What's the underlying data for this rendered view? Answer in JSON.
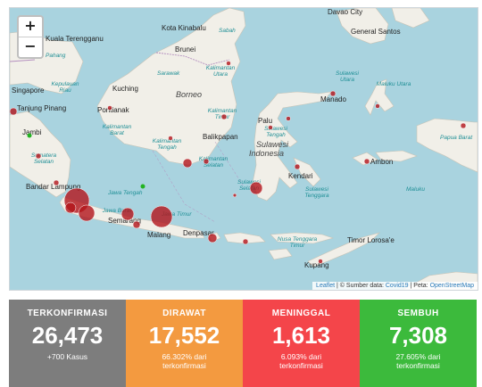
{
  "map": {
    "zoom_in": "+",
    "zoom_out": "−",
    "attribution": {
      "leaflet": "Leaflet",
      "mid": "| © Sumber data:",
      "source": "Covid19",
      "sep": "| Peta:",
      "tiles": "OpenStreetMap"
    },
    "labels": {
      "kota_kinabalu": "Kota Kinabalu",
      "sabah": "Sabah",
      "brunei": "Brunei",
      "kuala_terengganu": "Kuala Terengganu",
      "pahang": "Pahang",
      "sarawak": "Sarawak",
      "kuching": "Kuching",
      "borneo": "Borneo",
      "singapore": "Singapore",
      "kepulauan_riau": "Kepulauan Riau",
      "tanjung_pinang": "Tanjung Pinang",
      "jambi": "Jambi",
      "pontianak": "Pontianak",
      "kalimantan_barat": "Kalimantan Barat",
      "kalimantan_utara": "Kalimantan Utara",
      "kalimantan_timur": "Kalimantan Timur",
      "kalimantan_tengah": "Kalimantan Tengah",
      "kalimantan_selatan": "Kalimantan Selatan",
      "balikpapan": "Balikpapan",
      "general_santos": "General Santos",
      "manado": "Manado",
      "sulawesi_utara": "Sulawesi Utara",
      "maluku_utara": "Maluku Utara",
      "palu": "Palu",
      "sulawesi_tengah": "Sulawesi Tengah",
      "sulawesi": "Sulawesi",
      "indonesia": "Indonesia",
      "kendari": "Kendari",
      "sulawesi_tenggara": "Sulawesi Tenggara",
      "sulawesi_selatan": "Sulawesi Selatan",
      "sumatera_selatan": "Sumatera Selatan",
      "bandar_lampung": "Bandar Lampung",
      "jawa_tengah": "Jawa Tengah",
      "jawa_barat": "Jawa Barat",
      "semarang": "Semarang",
      "jawa_timur": "Jawa Timur",
      "malang": "Malang",
      "denpasar": "Denpasar",
      "ambon": "Ambon",
      "papua_barat": "Papua Barat",
      "maluku": "Maluku",
      "nusa_tenggara_timur": "Nusa Tenggara Timur",
      "timor_leste": "Timor Lorosa'e",
      "kupang": "Kupang",
      "davao_city": "Davao City"
    }
  },
  "stats": [
    {
      "title": "TERKONFIRMASI",
      "value": "26,473",
      "sub": "+700 Kasus"
    },
    {
      "title": "DIRAWAT",
      "value": "17,552",
      "sub": "66.302% dari terkonfirmasi"
    },
    {
      "title": "MENINGGAL",
      "value": "1,613",
      "sub": "6.093% dari terkonfirmasi"
    },
    {
      "title": "SEMBUH",
      "value": "7,308",
      "sub": "27.605% dari terkonfirmasi"
    }
  ],
  "colors": {
    "sea": "#a9d3df",
    "land": "#f1efe8",
    "border": "#b48fbf",
    "marker": "#b3141a",
    "marker_green": "#22b322",
    "card_confirmed": "#7d7d7d",
    "card_treated": "#f39a40",
    "card_died": "#f4454a",
    "card_recovered": "#3cba3c"
  }
}
